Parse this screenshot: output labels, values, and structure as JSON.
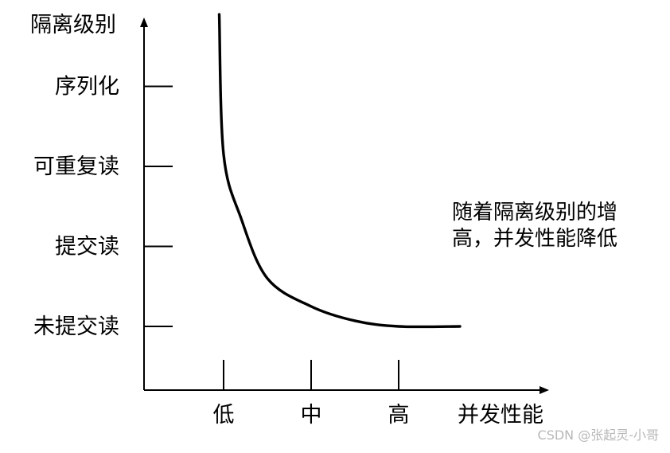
{
  "chart_data": {
    "type": "line",
    "ylabel": "隔离级别",
    "xlabel": "并发性能",
    "y_categories": [
      "未提交读",
      "提交读",
      "可重复读",
      "序列化"
    ],
    "x_categories": [
      "低",
      "中",
      "高"
    ],
    "series": [
      {
        "points": [
          {
            "x": 0.95,
            "y": 3.9
          },
          {
            "x": 1.0,
            "y": 2.15
          },
          {
            "x": 1.2,
            "y": 1.35
          },
          {
            "x": 1.5,
            "y": 0.6
          },
          {
            "x": 2.0,
            "y": 0.25
          },
          {
            "x": 2.5,
            "y": 0.07
          },
          {
            "x": 3.0,
            "y": 0.0
          },
          {
            "x": 3.7,
            "y": 0.0
          }
        ]
      }
    ],
    "annotations": [
      "随着隔离级别的增",
      "高，并发性能降低"
    ]
  },
  "watermark": "CSDN @张起灵-小哥"
}
